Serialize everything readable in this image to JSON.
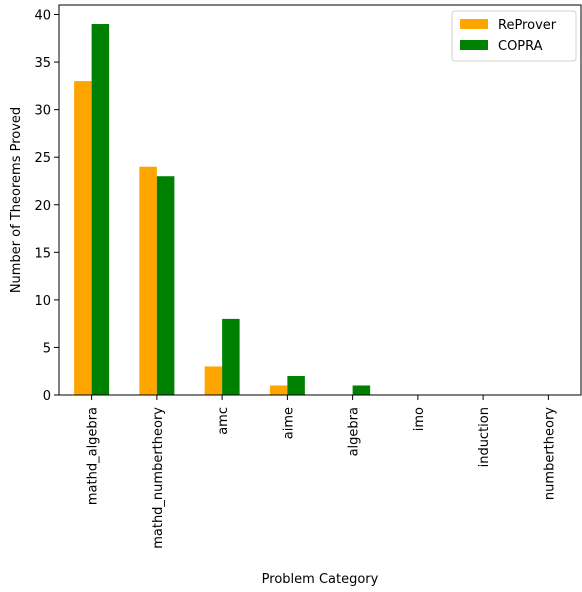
{
  "chart_data": {
    "type": "bar",
    "categories": [
      "mathd_algebra",
      "mathd_numbertheory",
      "amc",
      "aime",
      "algebra",
      "imo",
      "induction",
      "numbertheory"
    ],
    "series": [
      {
        "name": "ReProver",
        "values": [
          33,
          24,
          3,
          1,
          0,
          0,
          0,
          0
        ],
        "color": "#ffa500"
      },
      {
        "name": "COPRA",
        "values": [
          39,
          23,
          8,
          2,
          1,
          0,
          0,
          0
        ],
        "color": "#008000"
      }
    ],
    "xlabel": "Problem Category",
    "ylabel": "Number of Theorems Proved",
    "ylim": [
      0,
      41
    ],
    "yticks": [
      0,
      5,
      10,
      15,
      20,
      25,
      30,
      35,
      40
    ],
    "grid": false,
    "legend_position": "top-right"
  }
}
